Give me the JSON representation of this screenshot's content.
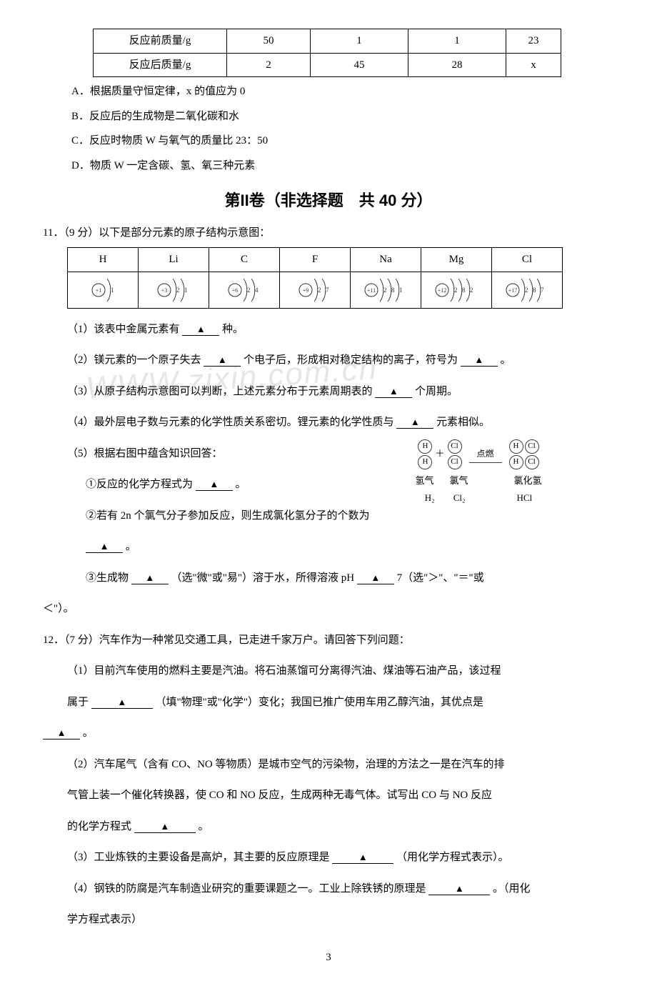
{
  "mass_table": {
    "col_widths": [
      "170px",
      "100px",
      "120px",
      "120px",
      "60px"
    ],
    "rows": [
      {
        "label": "反应前质量/g",
        "cells": [
          "50",
          "1",
          "1",
          "23"
        ]
      },
      {
        "label": "反应后质量/g",
        "cells": [
          "2",
          "45",
          "28",
          "x"
        ]
      }
    ]
  },
  "options_q10": {
    "A": "A．根据质量守恒定律，x 的值应为 0",
    "B": "B．反应后的生成物是二氧化碳和水",
    "C": "C．反应时物质 W 与氧气的质量比 23：50",
    "D": "D．物质 W 一定含碳、氢、氧三种元素"
  },
  "section2_title": "第II卷（非选择题　共 40 分）",
  "q11": {
    "stem": "11．（9 分）以下是部分元素的原子结构示意图：",
    "headers": [
      "H",
      "Li",
      "C",
      "F",
      "Na",
      "Mg",
      "Cl"
    ],
    "atoms": [
      {
        "p": 1,
        "shells": [
          1
        ]
      },
      {
        "p": 3,
        "shells": [
          2,
          1
        ]
      },
      {
        "p": 6,
        "shells": [
          2,
          4
        ]
      },
      {
        "p": 9,
        "shells": [
          2,
          7
        ]
      },
      {
        "p": 11,
        "shells": [
          2,
          8,
          1
        ]
      },
      {
        "p": 12,
        "shells": [
          2,
          8,
          2
        ]
      },
      {
        "p": 17,
        "shells": [
          2,
          8,
          7
        ]
      }
    ],
    "p1": "（1）该表中金属元素有",
    "p1_tail": "种。",
    "p2_a": "（2）镁元素的一个原子失去",
    "p2_b": "个电子后，形成相对稳定结构的离子，符号为",
    "p2_tail": "。",
    "p3": "（3）从原子结构示意图可以判断，上述元素分布于元素周期表的",
    "p3_tail": "个周期。",
    "p4": "（4）最外层电子数与元素的化学性质关系密切。锂元素的化学性质与",
    "p4_tail": "元素相似。",
    "p5": "（5）根据右图中蕴含知识回答：",
    "p5_1": "①反应的化学方程式为",
    "p5_1_tail": "。",
    "p5_2": "②若有 2n 个氯气分子参加反应，则生成氯化氢分子的个数为",
    "p5_2_tail": "。",
    "p5_3_a": "③生成物",
    "p5_3_b": "（选\"微\"或\"易\"）溶于水，所得溶液 pH",
    "p5_3_c": "7（选\"＞\"、\"＝\"或",
    "p5_3_tail": "＜\"）。",
    "fig_labels": {
      "ignite": "点燃",
      "h2": "氢气",
      "cl2": "氯气",
      "hcl": "氯化氢",
      "h2f": "H₂",
      "cl2f": "Cl₂",
      "hclf": "HCl"
    }
  },
  "q12": {
    "stem": "12．（7 分）汽车作为一种常见交通工具，已走进千家万户。请回答下列问题：",
    "p1_a": "（1）目前汽车使用的燃料主要是汽油。将石油蒸馏可分离得汽油、煤油等石油产品，该过程",
    "p1_b": "属于",
    "p1_c": "（填\"物理\"或\"化学\"）变化；我国已推广使用车用乙醇汽油，其优点是",
    "p1_tail": "。",
    "p2_a": "（2）汽车尾气（含有 CO、NO 等物质）是城市空气的污染物，治理的方法之一是在汽车的排",
    "p2_b": "气管上装一个催化转换器，使 CO 和 NO 反应，生成两种无毒气体。试写出 CO 与 NO 反应",
    "p2_c": "的化学方程式",
    "p2_tail": "。",
    "p3_a": "（3）工业炼铁的主要设备是高炉，其主要的反应原理是",
    "p3_tail": "（用化学方程式表示）。",
    "p4_a": "（4）钢铁的防腐是汽车制造业研究的重要课题之一。工业上除铁锈的原理是",
    "p4_b": "。（用化",
    "p4_tail": "学方程式表示）"
  },
  "page_num": "3",
  "watermark": "WWW.zixin.com.cn"
}
